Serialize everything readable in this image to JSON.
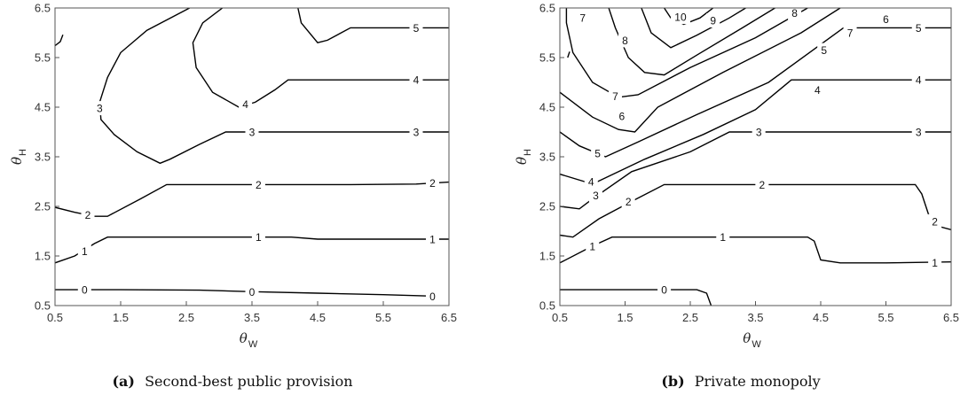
{
  "chart_data": [
    {
      "type": "contour",
      "caption_tag": "(a)",
      "caption_text": "Second-best public provision",
      "xlabel": "θ",
      "xlabel_sub": "W",
      "ylabel": "θ",
      "ylabel_sub": "H",
      "xlim": [
        0.5,
        6.5
      ],
      "ylim": [
        0.5,
        6.5
      ],
      "xticks": [
        0.5,
        1.5,
        2.5,
        3.5,
        4.5,
        5.5,
        6.5
      ],
      "yticks": [
        0.5,
        1.5,
        2.5,
        3.5,
        4.5,
        5.5,
        6.5
      ],
      "contours": [
        {
          "level": "0",
          "points": [
            [
              0.5,
              0.82
            ],
            [
              1.5,
              0.82
            ],
            [
              2.7,
              0.81
            ],
            [
              3.5,
              0.78
            ],
            [
              4.5,
              0.75
            ],
            [
              5.5,
              0.72
            ],
            [
              6.3,
              0.69
            ]
          ],
          "labels": [
            [
              0.95,
              0.82
            ],
            [
              3.5,
              0.78
            ],
            [
              6.25,
              0.69
            ]
          ]
        },
        {
          "level": "1",
          "points": [
            [
              0.5,
              1.36
            ],
            [
              0.8,
              1.5
            ],
            [
              1.1,
              1.75
            ],
            [
              1.3,
              1.88
            ],
            [
              2.0,
              1.88
            ],
            [
              3.0,
              1.88
            ],
            [
              4.1,
              1.88
            ],
            [
              4.5,
              1.84
            ],
            [
              5.5,
              1.84
            ],
            [
              6.5,
              1.84
            ]
          ],
          "labels": [
            [
              0.95,
              1.6
            ],
            [
              3.6,
              1.88
            ],
            [
              6.25,
              1.84
            ]
          ]
        },
        {
          "level": "2",
          "points": [
            [
              0.5,
              2.48
            ],
            [
              0.8,
              2.38
            ],
            [
              1.1,
              2.3
            ],
            [
              1.3,
              2.3
            ],
            [
              1.8,
              2.65
            ],
            [
              2.2,
              2.94
            ],
            [
              3.5,
              2.94
            ],
            [
              5.0,
              2.94
            ],
            [
              6.0,
              2.95
            ],
            [
              6.5,
              2.99
            ]
          ],
          "labels": [
            [
              1.0,
              2.33
            ],
            [
              3.6,
              2.94
            ],
            [
              6.25,
              2.97
            ]
          ]
        },
        {
          "level": "3",
          "points": [
            [
              2.55,
              6.5
            ],
            [
              1.9,
              6.05
            ],
            [
              1.5,
              5.6
            ],
            [
              1.3,
              5.1
            ],
            [
              1.18,
              4.6
            ],
            [
              1.2,
              4.25
            ],
            [
              1.4,
              3.95
            ],
            [
              1.75,
              3.6
            ],
            [
              2.1,
              3.37
            ],
            [
              2.25,
              3.45
            ],
            [
              2.7,
              3.75
            ],
            [
              3.1,
              4.0
            ],
            [
              4.0,
              4.0
            ],
            [
              5.5,
              4.0
            ],
            [
              6.5,
              4.0
            ]
          ],
          "labels": [
            [
              1.18,
              4.48
            ],
            [
              3.5,
              4.0
            ],
            [
              6.0,
              4.0
            ]
          ]
        },
        {
          "level": "4",
          "points": [
            [
              3.05,
              6.5
            ],
            [
              2.75,
              6.2
            ],
            [
              2.6,
              5.8
            ],
            [
              2.65,
              5.3
            ],
            [
              2.9,
              4.8
            ],
            [
              3.3,
              4.5
            ],
            [
              3.55,
              4.6
            ],
            [
              3.85,
              4.85
            ],
            [
              4.05,
              5.05
            ],
            [
              5.0,
              5.05
            ],
            [
              6.5,
              5.05
            ]
          ],
          "labels": [
            [
              3.4,
              4.56
            ],
            [
              6.0,
              5.05
            ]
          ]
        },
        {
          "level": "5",
          "points": [
            [
              4.2,
              6.5
            ],
            [
              4.25,
              6.2
            ],
            [
              4.5,
              5.8
            ],
            [
              4.65,
              5.85
            ],
            [
              5.0,
              6.1
            ],
            [
              6.0,
              6.1
            ],
            [
              6.5,
              6.1
            ]
          ],
          "labels": [
            [
              6.0,
              6.1
            ]
          ]
        },
        {
          "level": "",
          "points": [
            [
              0.5,
              5.74
            ],
            [
              0.58,
              5.82
            ],
            [
              0.62,
              5.96
            ]
          ],
          "labels": []
        }
      ]
    },
    {
      "type": "contour",
      "caption_tag": "(b)",
      "caption_text": "Private monopoly",
      "xlabel": "θ",
      "xlabel_sub": "W",
      "ylabel": "θ",
      "ylabel_sub": "H",
      "xlim": [
        0.5,
        6.5
      ],
      "ylim": [
        0.5,
        6.5
      ],
      "xticks": [
        0.5,
        1.5,
        2.5,
        3.5,
        4.5,
        5.5,
        6.5
      ],
      "yticks": [
        0.5,
        1.5,
        2.5,
        3.5,
        4.5,
        5.5,
        6.5
      ],
      "contours": [
        {
          "level": "0",
          "points": [
            [
              0.5,
              0.82
            ],
            [
              1.5,
              0.82
            ],
            [
              2.6,
              0.82
            ],
            [
              2.75,
              0.75
            ],
            [
              2.82,
              0.5
            ]
          ],
          "labels": [
            [
              2.1,
              0.82
            ]
          ]
        },
        {
          "level": "1",
          "points": [
            [
              0.5,
              1.36
            ],
            [
              1.0,
              1.7
            ],
            [
              1.3,
              1.88
            ],
            [
              2.5,
              1.88
            ],
            [
              4.3,
              1.88
            ],
            [
              4.4,
              1.8
            ],
            [
              4.5,
              1.42
            ],
            [
              4.8,
              1.36
            ],
            [
              5.5,
              1.36
            ],
            [
              6.5,
              1.38
            ]
          ],
          "labels": [
            [
              1.0,
              1.7
            ],
            [
              3.0,
              1.88
            ],
            [
              6.25,
              1.37
            ]
          ]
        },
        {
          "level": "2",
          "points": [
            [
              0.5,
              1.92
            ],
            [
              0.7,
              1.88
            ],
            [
              1.1,
              2.25
            ],
            [
              1.6,
              2.6
            ],
            [
              2.1,
              2.94
            ],
            [
              3.5,
              2.94
            ],
            [
              5.95,
              2.94
            ],
            [
              6.05,
              2.75
            ],
            [
              6.15,
              2.35
            ],
            [
              6.3,
              2.1
            ],
            [
              6.5,
              2.03
            ]
          ],
          "labels": [
            [
              1.55,
              2.6
            ],
            [
              3.6,
              2.94
            ],
            [
              6.25,
              2.2
            ]
          ]
        },
        {
          "level": "3",
          "points": [
            [
              0.5,
              2.5
            ],
            [
              0.8,
              2.45
            ],
            [
              1.0,
              2.65
            ],
            [
              1.6,
              3.2
            ],
            [
              2.5,
              3.6
            ],
            [
              3.1,
              4.0
            ],
            [
              4.0,
              4.0
            ],
            [
              5.5,
              4.0
            ],
            [
              6.5,
              4.0
            ]
          ],
          "labels": [
            [
              1.05,
              2.72
            ],
            [
              3.55,
              4.0
            ],
            [
              6.0,
              4.0
            ]
          ]
        },
        {
          "level": "4",
          "points": [
            [
              0.5,
              3.15
            ],
            [
              1.0,
              2.95
            ],
            [
              1.8,
              3.45
            ],
            [
              2.7,
              3.95
            ],
            [
              3.5,
              4.45
            ],
            [
              4.05,
              5.05
            ],
            [
              5.0,
              5.05
            ],
            [
              6.5,
              5.05
            ]
          ],
          "labels": [
            [
              0.98,
              3.0
            ],
            [
              4.45,
              4.85
            ],
            [
              6.0,
              5.05
            ]
          ]
        },
        {
          "level": "5",
          "points": [
            [
              0.5,
              4.0
            ],
            [
              0.8,
              3.72
            ],
            [
              1.2,
              3.5
            ],
            [
              1.7,
              3.8
            ],
            [
              2.6,
              4.35
            ],
            [
              3.7,
              5.0
            ],
            [
              4.85,
              6.1
            ],
            [
              5.5,
              6.1
            ],
            [
              6.5,
              6.1
            ]
          ],
          "labels": [
            [
              1.08,
              3.57
            ],
            [
              4.55,
              5.65
            ],
            [
              6.0,
              6.1
            ]
          ]
        },
        {
          "level": "6",
          "points": [
            [
              0.5,
              4.8
            ],
            [
              1.0,
              4.3
            ],
            [
              1.4,
              4.05
            ],
            [
              1.65,
              4.0
            ],
            [
              2.0,
              4.5
            ],
            [
              3.0,
              5.2
            ],
            [
              4.2,
              6.0
            ],
            [
              4.8,
              6.5
            ]
          ],
          "labels": [
            [
              1.45,
              4.32
            ],
            [
              5.5,
              6.28
            ]
          ]
        },
        {
          "level": "7",
          "points": [
            [
              0.6,
              6.5
            ],
            [
              0.6,
              6.2
            ],
            [
              0.7,
              5.6
            ],
            [
              1.0,
              5.0
            ],
            [
              1.4,
              4.7
            ],
            [
              1.7,
              4.75
            ],
            [
              2.5,
              5.3
            ],
            [
              3.5,
              5.9
            ],
            [
              4.3,
              6.5
            ]
          ],
          "labels": [
            [
              0.85,
              6.3
            ],
            [
              1.35,
              4.72
            ],
            [
              4.95,
              6.0
            ]
          ]
        },
        {
          "level": "8",
          "points": [
            [
              1.25,
              6.5
            ],
            [
              1.35,
              6.1
            ],
            [
              1.55,
              5.5
            ],
            [
              1.8,
              5.2
            ],
            [
              2.1,
              5.15
            ],
            [
              2.6,
              5.55
            ],
            [
              3.3,
              6.1
            ],
            [
              3.8,
              6.5
            ]
          ],
          "labels": [
            [
              1.5,
              5.85
            ],
            [
              4.1,
              6.4
            ]
          ]
        },
        {
          "level": "9",
          "points": [
            [
              1.75,
              6.5
            ],
            [
              1.9,
              6.0
            ],
            [
              2.2,
              5.7
            ],
            [
              2.6,
              5.95
            ],
            [
              3.1,
              6.3
            ],
            [
              3.35,
              6.5
            ]
          ],
          "labels": [
            [
              2.85,
              6.25
            ]
          ]
        },
        {
          "level": "10",
          "points": [
            [
              2.1,
              6.5
            ],
            [
              2.2,
              6.3
            ],
            [
              2.4,
              6.17
            ],
            [
              2.65,
              6.3
            ],
            [
              2.85,
              6.5
            ]
          ],
          "labels": [
            [
              2.35,
              6.32
            ]
          ]
        },
        {
          "level": "",
          "points": [
            [
              0.62,
              5.5
            ],
            [
              0.65,
              5.62
            ]
          ],
          "labels": []
        }
      ]
    }
  ]
}
